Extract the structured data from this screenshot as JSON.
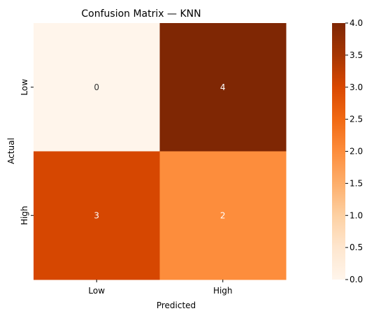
{
  "chart_data": {
    "type": "heatmap",
    "title": "Confusion Matrix — KNN",
    "xlabel": "Predicted",
    "ylabel": "Actual",
    "x_categories": [
      "Low",
      "High"
    ],
    "y_categories": [
      "Low",
      "High"
    ],
    "values": [
      [
        0,
        4
      ],
      [
        3,
        2
      ]
    ],
    "colormap": "Oranges",
    "colorbar": {
      "min": 0.0,
      "max": 4.0,
      "ticks": [
        "0.0",
        "0.5",
        "1.0",
        "1.5",
        "2.0",
        "2.5",
        "3.0",
        "3.5",
        "4.0"
      ]
    },
    "cell_colors": [
      [
        "#fff5eb",
        "#7f2704"
      ],
      [
        "#d64701",
        "#fd8d3c"
      ]
    ],
    "annotation_colors": [
      [
        "#333333",
        "#ffffff"
      ],
      [
        "#ffffff",
        "#ffffff"
      ]
    ]
  }
}
